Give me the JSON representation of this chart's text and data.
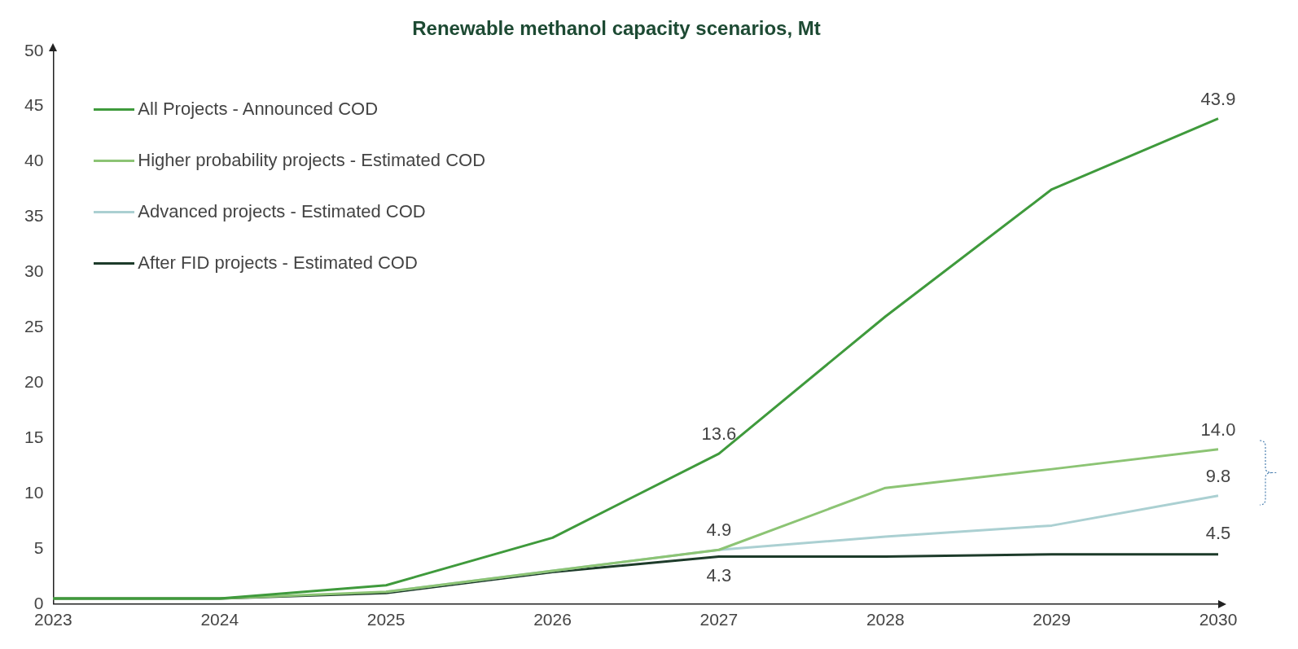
{
  "chart_data": {
    "type": "line",
    "title": "Renewable methanol capacity scenarios, Mt",
    "categories": [
      "2023",
      "2024",
      "2025",
      "2026",
      "2027",
      "2028",
      "2029",
      "2030"
    ],
    "series": [
      {
        "name": "All Projects - Announced COD",
        "color": "#3f9a3c",
        "values": [
          0.5,
          0.5,
          1.7,
          6.0,
          13.6,
          26.0,
          37.5,
          43.9
        ],
        "value_labels": [
          null,
          null,
          null,
          null,
          "13.6",
          null,
          null,
          "43.9"
        ]
      },
      {
        "name": "Higher probability projects - Estimated COD",
        "color": "#8cc474",
        "values": [
          0.5,
          0.5,
          1.1,
          3.0,
          4.9,
          10.5,
          12.2,
          14.0
        ],
        "value_labels": [
          null,
          null,
          null,
          null,
          null,
          null,
          null,
          "14.0"
        ]
      },
      {
        "name": "Advanced projects - Estimated COD",
        "color": "#abd0d2",
        "values": [
          null,
          null,
          1.1,
          3.0,
          4.9,
          6.1,
          7.1,
          9.8
        ],
        "value_labels": [
          null,
          null,
          null,
          null,
          "4.9",
          null,
          null,
          "9.8"
        ]
      },
      {
        "name": "After FID projects - Estimated COD",
        "color": "#1d3b2a",
        "values": [
          0.5,
          0.5,
          1.0,
          2.9,
          4.3,
          4.3,
          4.5,
          4.5
        ],
        "value_labels": [
          null,
          null,
          null,
          null,
          "4.3",
          null,
          null,
          "4.5"
        ]
      }
    ],
    "ylim": [
      0,
      50
    ],
    "yticks": [
      0,
      5,
      10,
      15,
      20,
      25,
      30,
      35,
      40,
      45,
      50
    ],
    "grid": false,
    "legend": "top left",
    "marker": "none",
    "line_style": "solid"
  }
}
